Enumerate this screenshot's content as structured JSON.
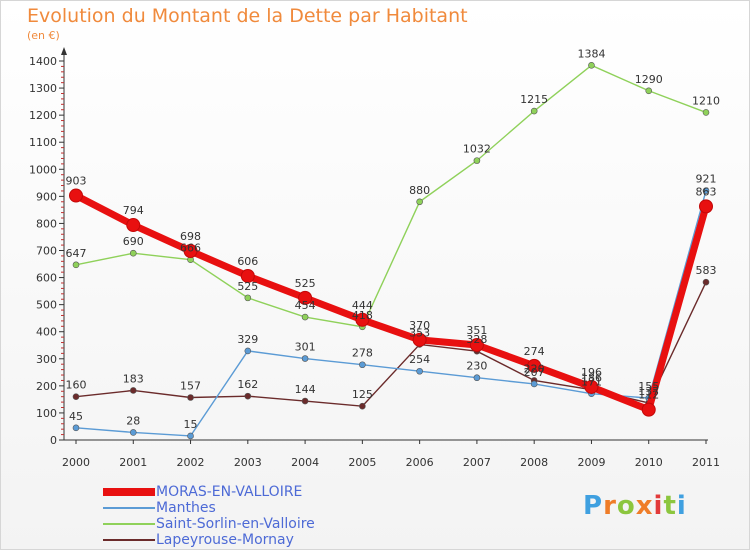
{
  "title": "Evolution du Montant de la Dette par Habitant",
  "unit_label": "(en €)",
  "brand": "Proxiti",
  "brand_letters": [
    "P",
    "r",
    "o",
    "x",
    "i",
    "t",
    "i"
  ],
  "brand_colors": [
    "#3fa0e0",
    "#ef7d28",
    "#8cc63e",
    "#ef7d28",
    "#e23a3a",
    "#8cc63e",
    "#3fa0e0"
  ],
  "chart_data": {
    "type": "line",
    "x": [
      2000,
      2001,
      2002,
      2003,
      2004,
      2005,
      2006,
      2007,
      2008,
      2009,
      2010,
      2011
    ],
    "ylim": [
      0,
      1400
    ],
    "yticks": [
      0,
      100,
      200,
      300,
      400,
      500,
      600,
      700,
      800,
      900,
      1000,
      1100,
      1200,
      1300,
      1400
    ],
    "grid": false,
    "legend_position": "bottom-left",
    "series": [
      {
        "name": "MORAS-EN-VALLOIRE",
        "color": "#e81010",
        "values": [
          903,
          794,
          698,
          606,
          525,
          444,
          370,
          351,
          274,
          196,
          112,
          863
        ]
      },
      {
        "name": "Manthes",
        "color": "#5b9bd5",
        "values": [
          45,
          28,
          15,
          329,
          301,
          278,
          254,
          230,
          207,
          171,
          155,
          921
        ]
      },
      {
        "name": "Saint-Sorlin-en-Valloire",
        "color": "#8fd15a",
        "values": [
          647,
          690,
          666,
          525,
          454,
          418,
          880,
          1032,
          1215,
          1384,
          1290,
          1210
        ]
      },
      {
        "name": "Lapeyrouse-Mornay",
        "color": "#6b2b2b",
        "values": [
          160,
          183,
          157,
          162,
          144,
          125,
          353,
          328,
          220,
          186,
          137,
          583
        ]
      }
    ]
  }
}
